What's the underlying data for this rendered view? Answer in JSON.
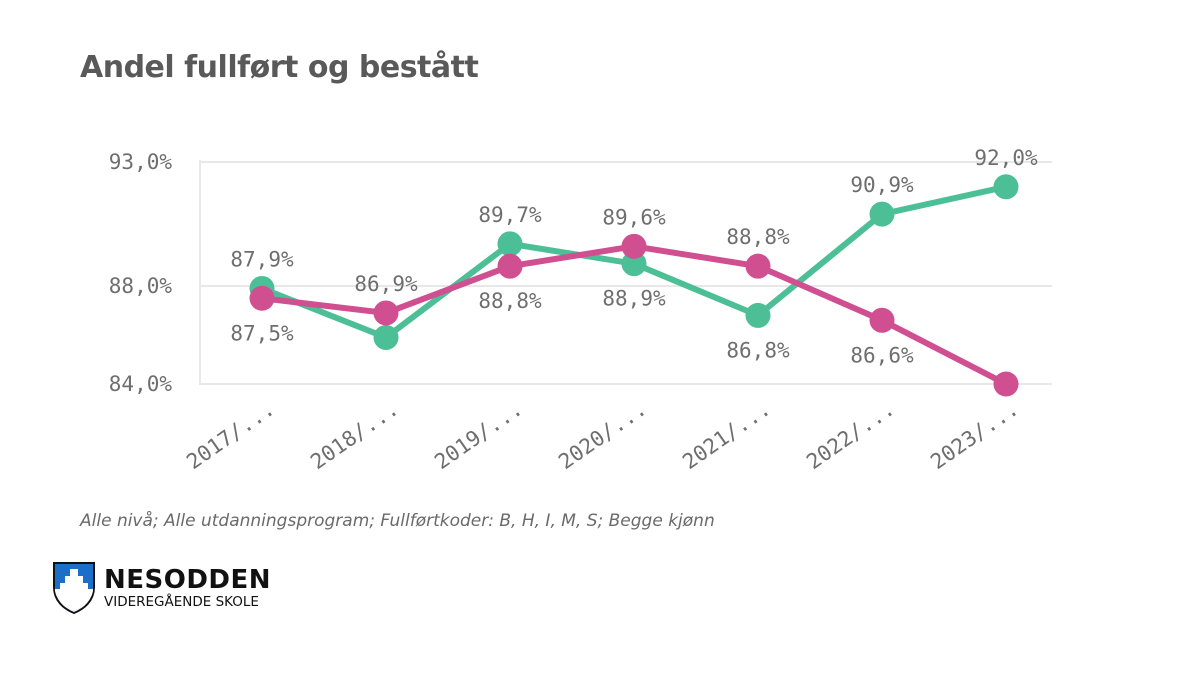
{
  "title": "Andel fullført og bestått",
  "caption": "Alle nivå; Alle utdanningsprogram; Fullførtkoder: B, H, I, M, S; Begge kjønn",
  "logo": {
    "name": "NESODDEN",
    "subtitle": "VIDEREGÅENDE SKOLE",
    "icon": "coat-of-arms-icon"
  },
  "colors": {
    "series_green": "#4cbf96",
    "series_pink": "#cf4f91",
    "grid": "#e8e8e8",
    "text": "#6e6e6e"
  },
  "chart_data": {
    "type": "line",
    "title": "Andel fullført og bestått",
    "categories": [
      "2017/...",
      "2018/...",
      "2019/...",
      "2020/...",
      "2021/...",
      "2022/...",
      "2023/..."
    ],
    "y_ticks": [
      "93,0%",
      "88,0%",
      "84,0%"
    ],
    "ylim": [
      84.0,
      93.0
    ],
    "grid": true,
    "legend": "none",
    "series": [
      {
        "color": "#4cbf96",
        "values": [
          87.9,
          85.9,
          89.7,
          88.9,
          86.8,
          90.9,
          92.0
        ],
        "labels": [
          "87,9%",
          "",
          "89,7%",
          "88,9%",
          "86,8%",
          "90,9%",
          "92,0%"
        ]
      },
      {
        "color": "#cf4f91",
        "values": [
          87.5,
          86.9,
          88.8,
          89.6,
          88.8,
          86.6,
          84.0
        ],
        "labels": [
          "87,5%",
          "86,9%",
          "88,8%",
          "89,6%",
          "88,8%",
          "86,6%",
          ""
        ]
      }
    ]
  }
}
